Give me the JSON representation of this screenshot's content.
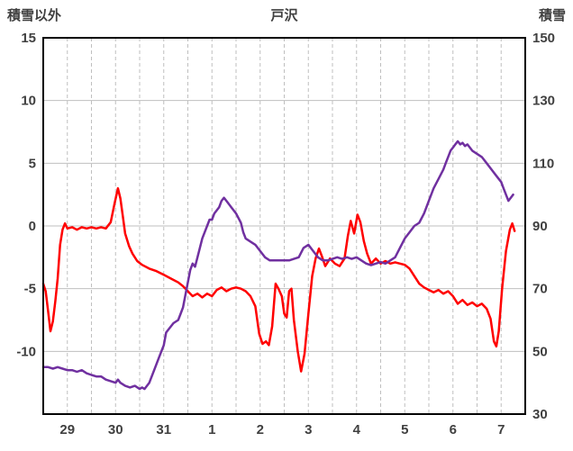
{
  "chart_data": {
    "type": "line",
    "title": "戸沢",
    "left_axis": {
      "title": "積雪以外",
      "min": -15,
      "max": 15,
      "tick_values": [
        15,
        10,
        5,
        0,
        -5,
        -10
      ],
      "gridline_values": [
        10,
        5,
        0,
        -5,
        -10
      ]
    },
    "right_axis": {
      "title": "積雪",
      "min": 30,
      "max": 150,
      "tick_values": [
        150,
        130,
        110,
        90,
        70,
        50,
        30
      ]
    },
    "x_axis": {
      "min": 0,
      "max": 10,
      "day_labels": [
        "29",
        "30",
        "31",
        "1",
        "2",
        "3",
        "4",
        "5",
        "6",
        "7"
      ],
      "gridline_step_days": 0.5,
      "gridline_dashed": true
    },
    "grid": {
      "h_color": "#bfbfbf",
      "v_color": "#bfbfbf",
      "border_color": "#000000"
    },
    "series": [
      {
        "name": "積雪以外",
        "axis": "left",
        "color": "#ff0000",
        "points": [
          [
            0.0,
            -4.6
          ],
          [
            0.05,
            -5.2
          ],
          [
            0.1,
            -6.8
          ],
          [
            0.15,
            -8.4
          ],
          [
            0.2,
            -7.6
          ],
          [
            0.25,
            -6.0
          ],
          [
            0.3,
            -4.2
          ],
          [
            0.35,
            -1.5
          ],
          [
            0.4,
            -0.3
          ],
          [
            0.45,
            0.2
          ],
          [
            0.5,
            -0.2
          ],
          [
            0.6,
            -0.1
          ],
          [
            0.7,
            -0.3
          ],
          [
            0.8,
            -0.1
          ],
          [
            0.9,
            -0.2
          ],
          [
            1.0,
            -0.1
          ],
          [
            1.1,
            -0.2
          ],
          [
            1.2,
            -0.1
          ],
          [
            1.3,
            -0.2
          ],
          [
            1.4,
            0.3
          ],
          [
            1.48,
            1.8
          ],
          [
            1.55,
            3.0
          ],
          [
            1.6,
            2.2
          ],
          [
            1.65,
            0.8
          ],
          [
            1.7,
            -0.6
          ],
          [
            1.78,
            -1.6
          ],
          [
            1.85,
            -2.2
          ],
          [
            1.95,
            -2.8
          ],
          [
            2.05,
            -3.1
          ],
          [
            2.2,
            -3.4
          ],
          [
            2.35,
            -3.6
          ],
          [
            2.5,
            -3.9
          ],
          [
            2.65,
            -4.2
          ],
          [
            2.8,
            -4.5
          ],
          [
            2.9,
            -4.8
          ],
          [
            3.0,
            -5.2
          ],
          [
            3.1,
            -5.6
          ],
          [
            3.2,
            -5.4
          ],
          [
            3.3,
            -5.7
          ],
          [
            3.4,
            -5.4
          ],
          [
            3.5,
            -5.6
          ],
          [
            3.6,
            -5.1
          ],
          [
            3.7,
            -4.9
          ],
          [
            3.8,
            -5.2
          ],
          [
            3.9,
            -5.0
          ],
          [
            4.0,
            -4.9
          ],
          [
            4.1,
            -5.0
          ],
          [
            4.2,
            -5.2
          ],
          [
            4.3,
            -5.6
          ],
          [
            4.4,
            -6.4
          ],
          [
            4.48,
            -8.6
          ],
          [
            4.55,
            -9.4
          ],
          [
            4.62,
            -9.2
          ],
          [
            4.68,
            -9.5
          ],
          [
            4.75,
            -8.0
          ],
          [
            4.82,
            -4.6
          ],
          [
            4.88,
            -5.0
          ],
          [
            4.95,
            -5.6
          ],
          [
            5.0,
            -7.0
          ],
          [
            5.05,
            -7.3
          ],
          [
            5.1,
            -5.2
          ],
          [
            5.15,
            -5.0
          ],
          [
            5.2,
            -7.5
          ],
          [
            5.28,
            -10.0
          ],
          [
            5.35,
            -11.6
          ],
          [
            5.42,
            -10.2
          ],
          [
            5.5,
            -7.0
          ],
          [
            5.58,
            -4.0
          ],
          [
            5.65,
            -2.6
          ],
          [
            5.72,
            -1.8
          ],
          [
            5.78,
            -2.4
          ],
          [
            5.85,
            -3.2
          ],
          [
            5.95,
            -2.6
          ],
          [
            6.05,
            -3.0
          ],
          [
            6.15,
            -3.2
          ],
          [
            6.25,
            -2.6
          ],
          [
            6.32,
            -0.8
          ],
          [
            6.38,
            0.4
          ],
          [
            6.45,
            -0.6
          ],
          [
            6.52,
            0.9
          ],
          [
            6.58,
            0.3
          ],
          [
            6.65,
            -1.2
          ],
          [
            6.72,
            -2.2
          ],
          [
            6.8,
            -3.0
          ],
          [
            6.9,
            -2.6
          ],
          [
            7.0,
            -3.0
          ],
          [
            7.1,
            -2.8
          ],
          [
            7.2,
            -3.0
          ],
          [
            7.3,
            -2.9
          ],
          [
            7.4,
            -3.0
          ],
          [
            7.5,
            -3.1
          ],
          [
            7.6,
            -3.4
          ],
          [
            7.7,
            -4.0
          ],
          [
            7.8,
            -4.6
          ],
          [
            7.9,
            -4.9
          ],
          [
            8.0,
            -5.1
          ],
          [
            8.1,
            -5.3
          ],
          [
            8.2,
            -5.1
          ],
          [
            8.3,
            -5.4
          ],
          [
            8.4,
            -5.2
          ],
          [
            8.5,
            -5.6
          ],
          [
            8.6,
            -6.2
          ],
          [
            8.7,
            -5.9
          ],
          [
            8.8,
            -6.3
          ],
          [
            8.9,
            -6.1
          ],
          [
            9.0,
            -6.4
          ],
          [
            9.1,
            -6.2
          ],
          [
            9.2,
            -6.6
          ],
          [
            9.28,
            -7.4
          ],
          [
            9.35,
            -9.2
          ],
          [
            9.4,
            -9.6
          ],
          [
            9.45,
            -8.4
          ],
          [
            9.52,
            -5.0
          ],
          [
            9.6,
            -2.0
          ],
          [
            9.68,
            -0.3
          ],
          [
            9.73,
            0.2
          ],
          [
            9.78,
            -0.4
          ]
        ]
      },
      {
        "name": "積雪",
        "axis": "right",
        "color": "#7030a0",
        "points": [
          [
            0.0,
            45
          ],
          [
            0.1,
            45
          ],
          [
            0.2,
            44.5
          ],
          [
            0.3,
            45
          ],
          [
            0.4,
            44.5
          ],
          [
            0.5,
            44
          ],
          [
            0.6,
            44
          ],
          [
            0.7,
            43.5
          ],
          [
            0.8,
            44
          ],
          [
            0.9,
            43
          ],
          [
            1.0,
            42.5
          ],
          [
            1.1,
            42
          ],
          [
            1.2,
            42
          ],
          [
            1.3,
            41
          ],
          [
            1.4,
            40.5
          ],
          [
            1.5,
            40
          ],
          [
            1.55,
            41
          ],
          [
            1.6,
            40
          ],
          [
            1.7,
            39
          ],
          [
            1.8,
            38.5
          ],
          [
            1.9,
            39
          ],
          [
            2.0,
            38
          ],
          [
            2.05,
            38.5
          ],
          [
            2.1,
            38
          ],
          [
            2.2,
            40
          ],
          [
            2.3,
            44
          ],
          [
            2.4,
            48
          ],
          [
            2.5,
            52
          ],
          [
            2.55,
            56
          ],
          [
            2.6,
            57
          ],
          [
            2.7,
            59
          ],
          [
            2.8,
            60
          ],
          [
            2.85,
            62
          ],
          [
            2.9,
            64
          ],
          [
            2.95,
            68
          ],
          [
            3.0,
            72
          ],
          [
            3.05,
            76
          ],
          [
            3.1,
            78
          ],
          [
            3.15,
            77
          ],
          [
            3.2,
            80
          ],
          [
            3.3,
            86
          ],
          [
            3.4,
            90
          ],
          [
            3.45,
            92
          ],
          [
            3.5,
            92
          ],
          [
            3.55,
            94
          ],
          [
            3.6,
            95
          ],
          [
            3.65,
            96
          ],
          [
            3.7,
            98
          ],
          [
            3.75,
            99
          ],
          [
            3.8,
            98
          ],
          [
            3.9,
            96
          ],
          [
            4.0,
            94
          ],
          [
            4.1,
            91
          ],
          [
            4.15,
            88
          ],
          [
            4.2,
            86
          ],
          [
            4.3,
            85
          ],
          [
            4.4,
            84
          ],
          [
            4.5,
            82
          ],
          [
            4.6,
            80
          ],
          [
            4.7,
            79
          ],
          [
            4.8,
            79
          ],
          [
            4.9,
            79
          ],
          [
            5.0,
            79
          ],
          [
            5.1,
            79
          ],
          [
            5.2,
            79.5
          ],
          [
            5.3,
            80
          ],
          [
            5.4,
            83
          ],
          [
            5.5,
            84
          ],
          [
            5.6,
            82
          ],
          [
            5.7,
            80
          ],
          [
            5.8,
            79
          ],
          [
            5.9,
            79
          ],
          [
            6.0,
            79.5
          ],
          [
            6.1,
            80
          ],
          [
            6.2,
            79.5
          ],
          [
            6.3,
            80
          ],
          [
            6.4,
            79.5
          ],
          [
            6.5,
            80
          ],
          [
            6.6,
            79
          ],
          [
            6.7,
            78
          ],
          [
            6.8,
            77.5
          ],
          [
            6.9,
            78
          ],
          [
            7.0,
            78.5
          ],
          [
            7.1,
            78
          ],
          [
            7.2,
            79
          ],
          [
            7.3,
            80
          ],
          [
            7.4,
            83
          ],
          [
            7.5,
            86
          ],
          [
            7.6,
            88
          ],
          [
            7.7,
            90
          ],
          [
            7.8,
            91
          ],
          [
            7.9,
            94
          ],
          [
            8.0,
            98
          ],
          [
            8.1,
            102
          ],
          [
            8.2,
            105
          ],
          [
            8.3,
            108
          ],
          [
            8.35,
            110
          ],
          [
            8.4,
            112
          ],
          [
            8.45,
            114
          ],
          [
            8.5,
            115
          ],
          [
            8.55,
            116
          ],
          [
            8.6,
            117
          ],
          [
            8.65,
            116
          ],
          [
            8.7,
            116.5
          ],
          [
            8.75,
            115.5
          ],
          [
            8.8,
            116
          ],
          [
            8.9,
            114
          ],
          [
            9.0,
            113
          ],
          [
            9.1,
            112
          ],
          [
            9.2,
            110
          ],
          [
            9.3,
            108
          ],
          [
            9.4,
            106
          ],
          [
            9.5,
            104
          ],
          [
            9.55,
            102
          ],
          [
            9.6,
            100
          ],
          [
            9.65,
            98
          ],
          [
            9.7,
            99
          ],
          [
            9.75,
            100
          ]
        ]
      }
    ]
  }
}
